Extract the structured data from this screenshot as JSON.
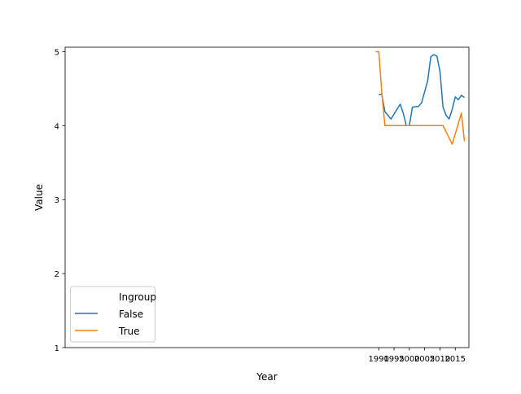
{
  "chart_data": {
    "type": "line",
    "title": "",
    "xlabel": "Year",
    "ylabel": "Value",
    "xlim": [
      1887.55,
      2019.45
    ],
    "ylim": [
      1,
      5.06
    ],
    "x_ticks": [
      1990,
      1995,
      2000,
      2005,
      2010,
      2015
    ],
    "y_ticks": [
      1,
      2,
      3,
      4,
      5
    ],
    "grid": false,
    "legend": {
      "title": "Ingroup",
      "position": "lower-left"
    },
    "series": [
      {
        "name": "False",
        "color": "#1f77b4",
        "points": [
          [
            1990,
            4.42
          ],
          [
            1991,
            4.42
          ],
          [
            1992,
            4.19
          ],
          [
            1994,
            4.09
          ],
          [
            1997,
            4.29
          ],
          [
            1998,
            4.17
          ],
          [
            1999,
            4.0
          ],
          [
            2000,
            4.0
          ],
          [
            2001,
            4.25
          ],
          [
            2003,
            4.26
          ],
          [
            2004,
            4.31
          ],
          [
            2006,
            4.61
          ],
          [
            2007,
            4.93
          ],
          [
            2008,
            4.96
          ],
          [
            2009,
            4.94
          ],
          [
            2010,
            4.73
          ],
          [
            2011,
            4.25
          ],
          [
            2012,
            4.14
          ],
          [
            2013,
            4.09
          ],
          [
            2014,
            4.22
          ],
          [
            2015,
            4.39
          ],
          [
            2016,
            4.35
          ],
          [
            2017,
            4.41
          ],
          [
            2018,
            4.38
          ]
        ]
      },
      {
        "name": "True",
        "color": "#ff7f0e",
        "points": [
          [
            1989,
            5.0
          ],
          [
            1990,
            5.0
          ],
          [
            1991,
            4.45
          ],
          [
            1992,
            4.0
          ],
          [
            2011,
            4.0
          ],
          [
            2014,
            3.75
          ],
          [
            2017,
            4.17
          ],
          [
            2018,
            3.79
          ]
        ]
      }
    ]
  }
}
